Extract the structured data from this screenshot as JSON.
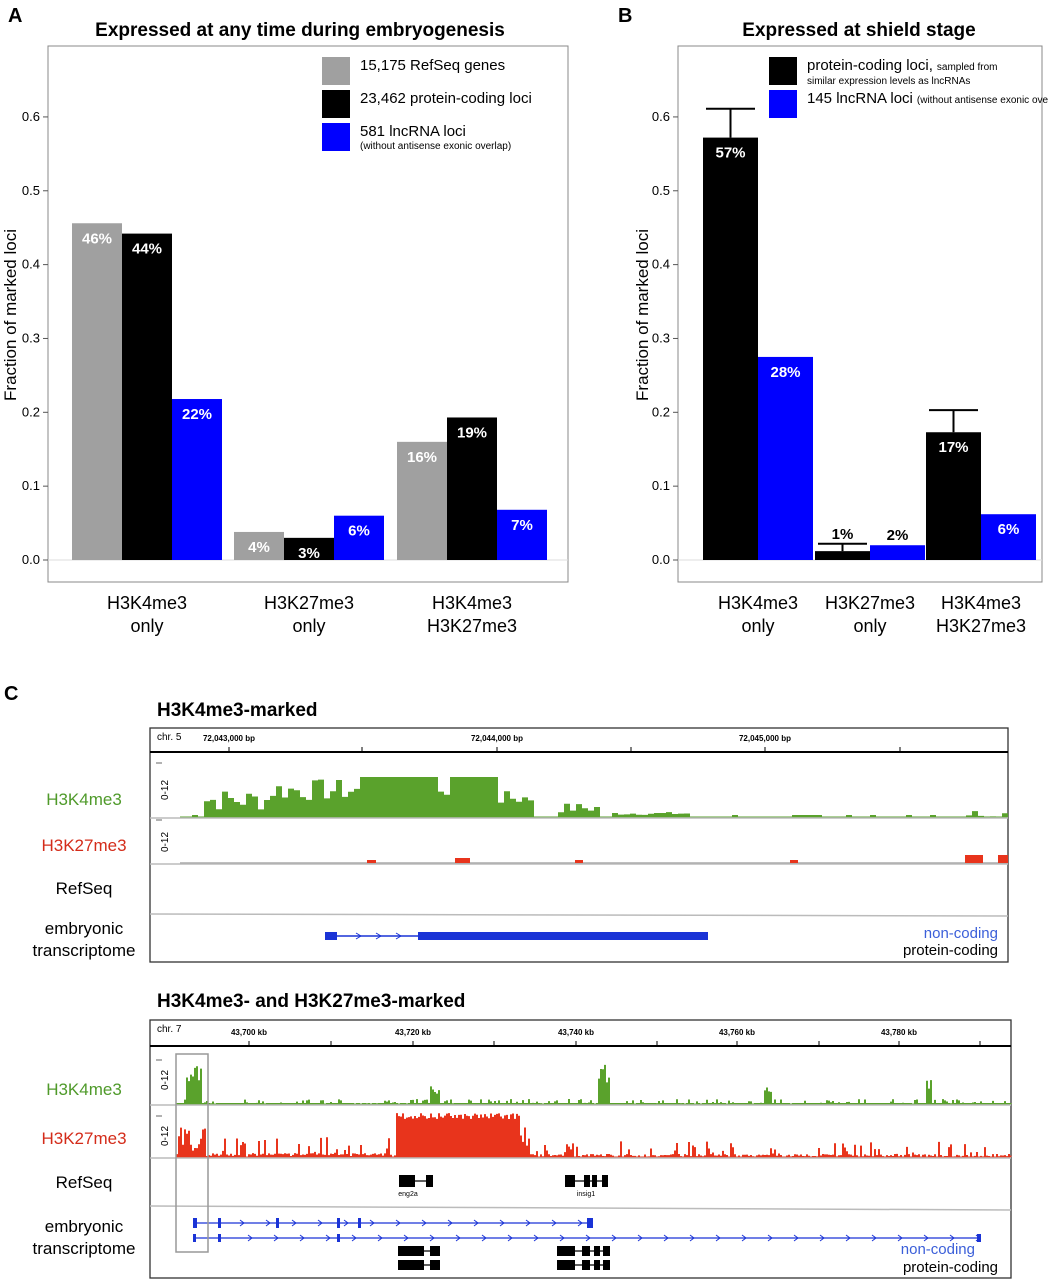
{
  "panel_labels": {
    "a": "A",
    "b": "B",
    "c": "C"
  },
  "chart_data": [
    {
      "type": "bar",
      "title": "Expressed at any time during embryogenesis",
      "ylabel": "Fraction of marked loci",
      "ylim": [
        0,
        0.65
      ],
      "yticks": [
        "0.0",
        "0.1",
        "0.2",
        "0.3",
        "0.4",
        "0.5",
        "0.6"
      ],
      "categories": [
        [
          "H3K4me3",
          "only"
        ],
        [
          "H3K27me3",
          "only"
        ],
        [
          "H3K4me3",
          "H3K27me3"
        ]
      ],
      "legend_position": "top-right",
      "series": [
        {
          "name": "15,175 RefSeq genes",
          "note": "",
          "color": "#a0a0a0",
          "label_color": "#ffffff",
          "values": [
            0.456,
            0.038,
            0.16
          ],
          "labels": [
            "46%",
            "4%",
            "16%"
          ]
        },
        {
          "name": "23,462 protein-coding loci",
          "note": "",
          "color": "#000000",
          "label_color": "#ffffff",
          "values": [
            0.442,
            0.03,
            0.193
          ],
          "labels": [
            "44%",
            "3%",
            "19%"
          ]
        },
        {
          "name": "581 lncRNA loci",
          "note": "(without antisense exonic overlap)",
          "color": "#0000ff",
          "label_color": "#ffffff",
          "values": [
            0.218,
            0.06,
            0.068
          ],
          "labels": [
            "22%",
            "6%",
            "7%"
          ]
        }
      ]
    },
    {
      "type": "bar",
      "title": "Expressed at shield stage",
      "ylabel": "Fraction of marked loci",
      "ylim": [
        0,
        0.65
      ],
      "yticks": [
        "0.0",
        "0.1",
        "0.2",
        "0.3",
        "0.4",
        "0.5",
        "0.6"
      ],
      "categories": [
        [
          "H3K4me3",
          "only"
        ],
        [
          "H3K27me3",
          "only"
        ],
        [
          "H3K4me3",
          "H3K27me3"
        ]
      ],
      "legend_position": "top-right",
      "series": [
        {
          "name": "protein-coding loci,",
          "note": "sampled from",
          "note2": "similar expression levels as lncRNAs",
          "color": "#000000",
          "label_color": "#ffffff",
          "values": [
            0.572,
            0.012,
            0.173
          ],
          "errors_upper": [
            0.611,
            0.022,
            0.203
          ],
          "labels": [
            "57%",
            "1%",
            "17%"
          ]
        },
        {
          "name": "145 lncRNA loci",
          "note": "(without antisense exonic overlap)",
          "note2": "",
          "color": "#0000ff",
          "label_color": "#ffffff",
          "values": [
            0.275,
            0.02,
            0.062
          ],
          "labels": [
            "28%",
            "2%",
            "6%"
          ]
        }
      ]
    }
  ],
  "genome_panels": [
    {
      "title": "H3K4me3-marked",
      "chr": "chr. 5",
      "coords": [
        "72,043,000 bp",
        "72,044,000 bp",
        "72,045,000 bp"
      ],
      "tracks": {
        "k4": "H3K4me3",
        "k27": "H3K27me3",
        "refseq": "RefSeq",
        "emb1": "embryonic",
        "emb2": "transcriptome"
      },
      "range": "0-12",
      "genes": [],
      "legend": {
        "noncoding": "non-coding",
        "coding": "protein-coding"
      }
    },
    {
      "title": "H3K4me3- and H3K27me3-marked",
      "chr": "chr. 7",
      "coords": [
        "43,700 kb",
        "43,720 kb",
        "43,740 kb",
        "43,760 kb",
        "43,780 kb"
      ],
      "tracks": {
        "k4": "H3K4me3",
        "k27": "H3K27me3",
        "refseq": "RefSeq",
        "emb1": "embryonic",
        "emb2": "transcriptome"
      },
      "range": "0-12",
      "genes": [
        "eng2a",
        "insig1"
      ],
      "legend": {
        "noncoding": "non-coding",
        "coding": "protein-coding"
      }
    }
  ],
  "colors": {
    "green": "#5aa22c",
    "red": "#e8341c",
    "blue": "#1a33d6",
    "track_label_green": "#4f9a2a",
    "track_label_red": "#d42c1a"
  }
}
